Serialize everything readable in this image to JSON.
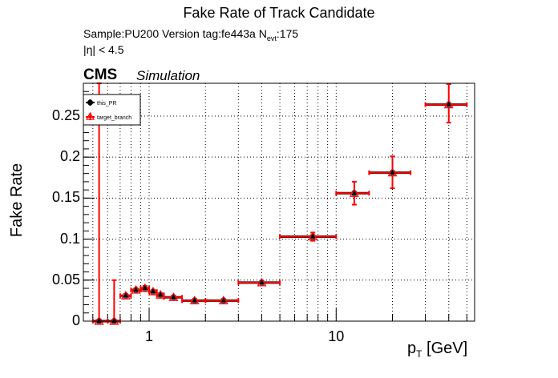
{
  "header": {
    "title": "Fake Rate of Track Candidate",
    "sample_line_pre": "Sample:PU200   Version tag:fe443a  N",
    "sample_line_sub": "evt",
    "sample_line_post": ":175",
    "eta_cut": "|η| < 4.5",
    "cms_label": "CMS",
    "simulation_label": "Simulation"
  },
  "legend": {
    "items": [
      {
        "label": "this_PR",
        "marker": "filled-circle",
        "color": "#000000"
      },
      {
        "label": "target_branch",
        "marker": "open-triangle",
        "color": "#ff0000"
      }
    ]
  },
  "axes": {
    "ylabel": "Fake Rate",
    "xlabel_main": "p",
    "xlabel_sub": "T",
    "xlabel_unit": " [GeV]",
    "yticks": [
      "0",
      "0.05",
      "0.1",
      "0.15",
      "0.2",
      "0.25"
    ],
    "xticks": [
      "1",
      "10"
    ]
  },
  "chart_data": {
    "type": "scatter",
    "title": "Fake Rate of Track Candidate",
    "xlabel": "p_T [GeV]",
    "ylabel": "Fake Rate",
    "xscale": "log",
    "xlim": [
      0.445,
      55
    ],
    "ylim": [
      0,
      0.29
    ],
    "grid": true,
    "legend_position": "top-left",
    "series": [
      {
        "name": "this_PR",
        "color": "#000000",
        "points": [
          {
            "x": 0.54,
            "y": 0.0,
            "xlo": 0.5,
            "xhi": 0.6,
            "ylo": 0.0,
            "yhi": 0.29
          },
          {
            "x": 0.65,
            "y": 0.0,
            "xlo": 0.6,
            "xhi": 0.7,
            "ylo": 0.0,
            "yhi": 0.05
          },
          {
            "x": 0.75,
            "y": 0.031,
            "xlo": 0.7,
            "xhi": 0.8,
            "ylo": 0.029,
            "yhi": 0.033
          },
          {
            "x": 0.85,
            "y": 0.038,
            "xlo": 0.8,
            "xhi": 0.9,
            "ylo": 0.036,
            "yhi": 0.04
          },
          {
            "x": 0.95,
            "y": 0.04,
            "xlo": 0.9,
            "xhi": 1.0,
            "ylo": 0.038,
            "yhi": 0.043
          },
          {
            "x": 1.05,
            "y": 0.036,
            "xlo": 1.0,
            "xhi": 1.1,
            "ylo": 0.034,
            "yhi": 0.038
          },
          {
            "x": 1.15,
            "y": 0.032,
            "xlo": 1.1,
            "xhi": 1.2,
            "ylo": 0.03,
            "yhi": 0.034
          },
          {
            "x": 1.35,
            "y": 0.029,
            "xlo": 1.2,
            "xhi": 1.5,
            "ylo": 0.027,
            "yhi": 0.031
          },
          {
            "x": 1.75,
            "y": 0.025,
            "xlo": 1.5,
            "xhi": 2.0,
            "ylo": 0.024,
            "yhi": 0.027
          },
          {
            "x": 2.5,
            "y": 0.025,
            "xlo": 2.0,
            "xhi": 3.0,
            "ylo": 0.024,
            "yhi": 0.027
          },
          {
            "x": 4.0,
            "y": 0.047,
            "xlo": 3.0,
            "xhi": 5.0,
            "ylo": 0.045,
            "yhi": 0.049
          },
          {
            "x": 7.5,
            "y": 0.103,
            "xlo": 5.0,
            "xhi": 10.0,
            "ylo": 0.098,
            "yhi": 0.108
          },
          {
            "x": 12.5,
            "y": 0.156,
            "xlo": 10.0,
            "xhi": 15.0,
            "ylo": 0.142,
            "yhi": 0.17
          },
          {
            "x": 20.0,
            "y": 0.181,
            "xlo": 15.0,
            "xhi": 25.0,
            "ylo": 0.162,
            "yhi": 0.201
          },
          {
            "x": 40.0,
            "y": 0.264,
            "xlo": 30.0,
            "xhi": 50.0,
            "ylo": 0.242,
            "yhi": 0.289
          }
        ]
      },
      {
        "name": "target_branch",
        "color": "#ff0000",
        "points": "identical to this_PR (overlapping)"
      }
    ]
  }
}
